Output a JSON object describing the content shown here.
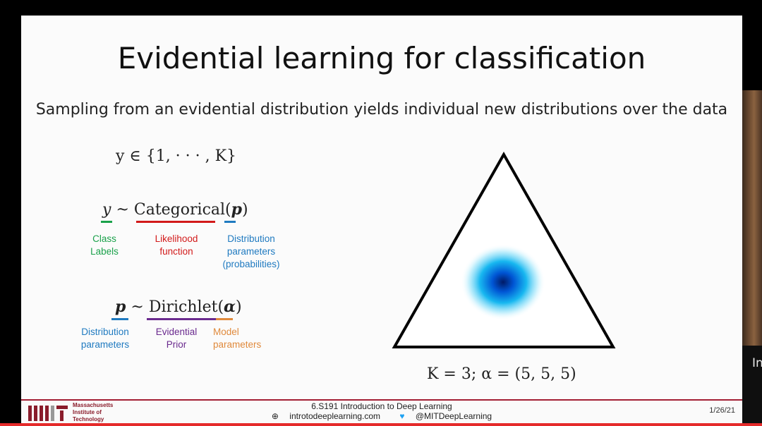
{
  "slide": {
    "title": "Evidential learning for classification",
    "subtitle": "Sampling from an evidential distribution yields individual new distributions over the data"
  },
  "equations": {
    "set": "y ∈ {1, · · · , K}",
    "eq1": {
      "lhs": "y",
      "op": "~",
      "fn": "Categorical(",
      "param": "p",
      "close": ")"
    },
    "eq2": {
      "lhs": "p",
      "op": "~",
      "fn": "Dirichlet(",
      "param": "α",
      "close": ")"
    },
    "k_alpha": "K = 3;    α = (5, 5, 5)"
  },
  "labels": {
    "class_labels": [
      "Class",
      "Labels"
    ],
    "likelihood": [
      "Likelihood",
      "function"
    ],
    "dist_params_1": [
      "Distribution",
      "parameters",
      "(probabilities)"
    ],
    "dist_params_2": [
      "Distribution",
      "parameters"
    ],
    "evidential_prior": [
      "Evidential",
      "Prior"
    ],
    "model_params": [
      "Model",
      "parameters"
    ]
  },
  "colors": {
    "green": "#1aa14a",
    "red": "#d21a1a",
    "blue": "#1f7ac0",
    "purple": "#6a2a8e",
    "orange": "#e08a3c",
    "mit": "#a31f34"
  },
  "footer": {
    "institute": [
      "Massachusetts",
      "Institute of",
      "Technology"
    ],
    "course": "6.S191 Introduction to Deep Learning",
    "site": "introtodeeplearning.com",
    "twitter": "@MITDeepLearning",
    "date": "1/26/21"
  },
  "webcam_text": "In"
}
